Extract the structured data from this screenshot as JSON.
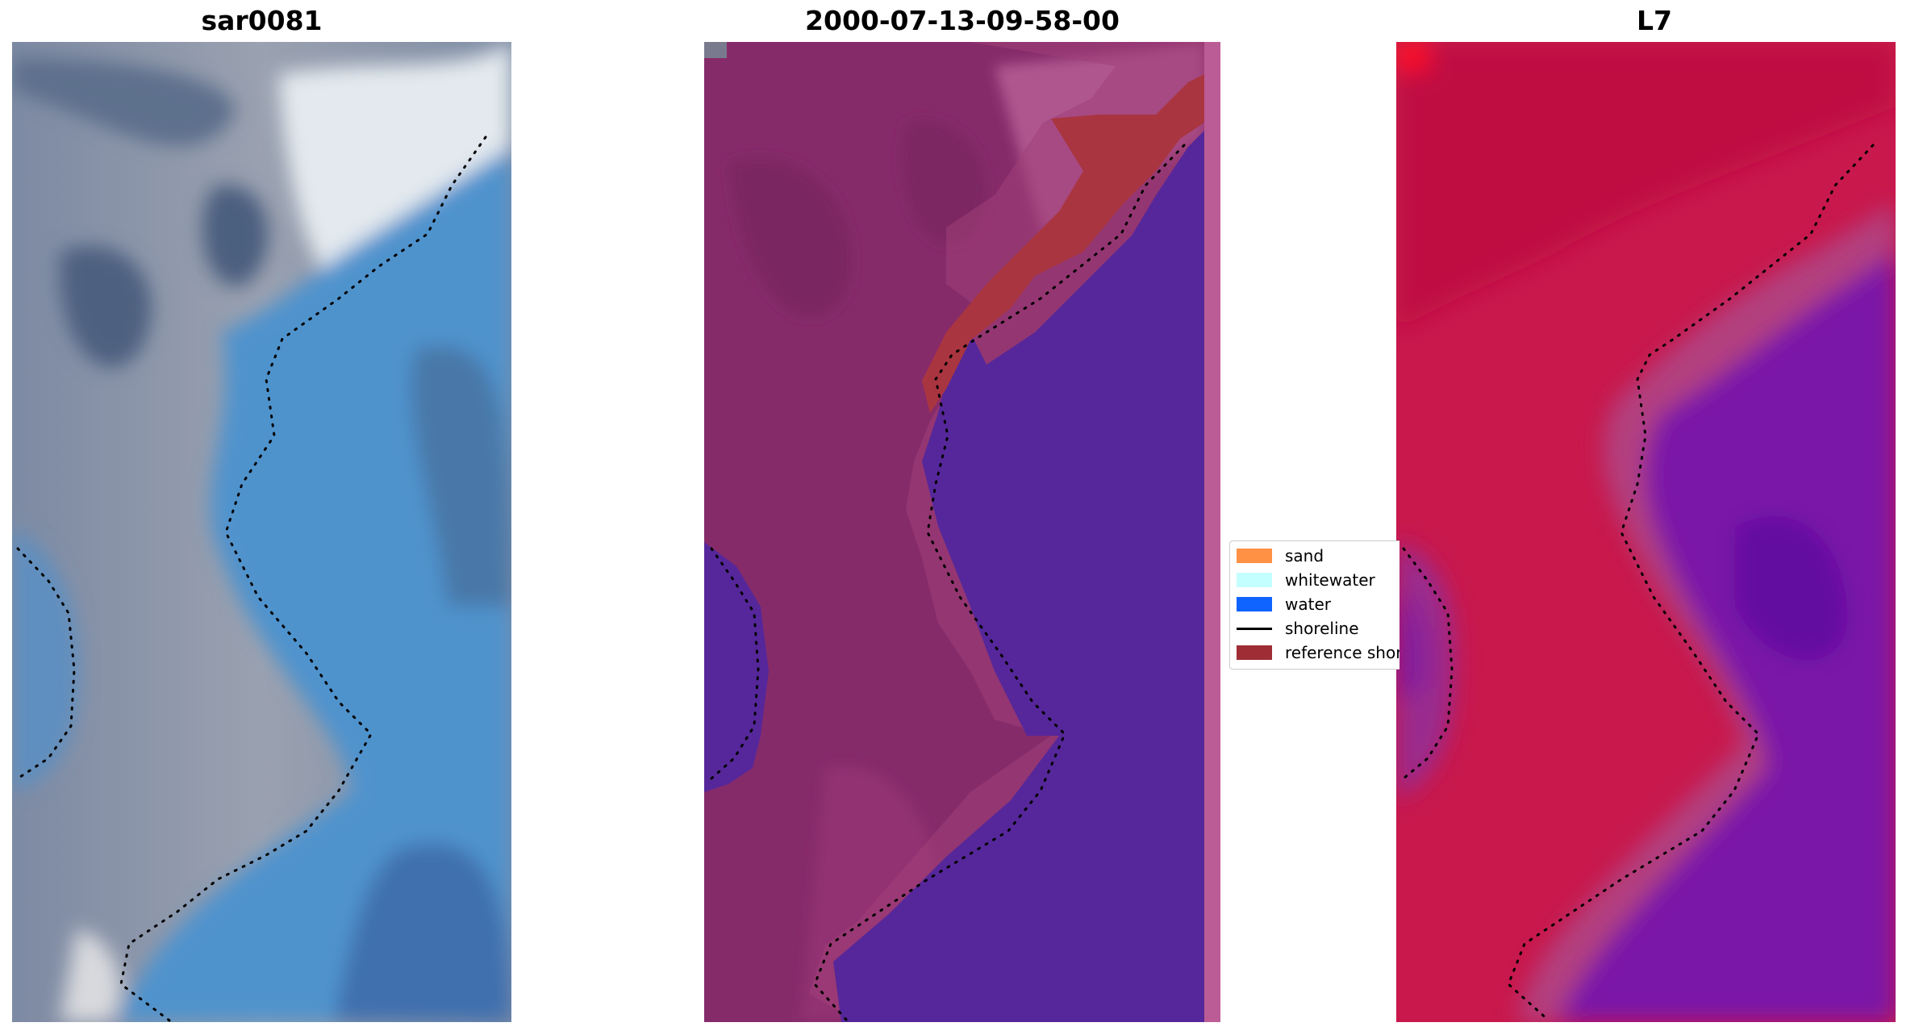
{
  "panels": [
    {
      "title": "sar0081"
    },
    {
      "title": "2000-07-13-09-58-00"
    },
    {
      "title": "L7"
    }
  ],
  "legend": {
    "items": [
      {
        "label": "sand",
        "color": "#ff9145"
      },
      {
        "label": "whitewater",
        "color": "#c4ffff"
      },
      {
        "label": "water",
        "color": "#0f63ff"
      },
      {
        "label": "shoreline",
        "color": "#000000"
      },
      {
        "label": "reference shoreline",
        "color": "#9e2d36"
      }
    ]
  },
  "colors": {
    "rgb_land": "#8e97a6",
    "rgb_dark": "#4d6484",
    "rgb_water": "#4e95d0",
    "rgb_white": "#e6ecf0",
    "class_land": "#862b6a",
    "class_water": "#56279a",
    "class_reference": "#a93540",
    "index_land": "#c8184c",
    "index_water": "#7a18a8"
  }
}
